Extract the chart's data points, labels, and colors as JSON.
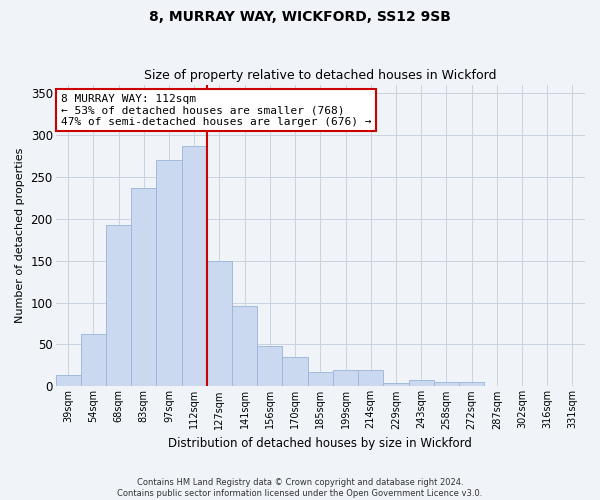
{
  "title": "8, MURRAY WAY, WICKFORD, SS12 9SB",
  "subtitle": "Size of property relative to detached houses in Wickford",
  "xlabel": "Distribution of detached houses by size in Wickford",
  "ylabel": "Number of detached properties",
  "bar_color": "#cad9ef",
  "bar_edge_color": "#9ab4d8",
  "highlight_color": "#cc0000",
  "highlight_index": 5,
  "categories": [
    "39sqm",
    "54sqm",
    "68sqm",
    "83sqm",
    "97sqm",
    "112sqm",
    "127sqm",
    "141sqm",
    "156sqm",
    "170sqm",
    "185sqm",
    "199sqm",
    "214sqm",
    "229sqm",
    "243sqm",
    "258sqm",
    "272sqm",
    "287sqm",
    "302sqm",
    "316sqm",
    "331sqm"
  ],
  "values": [
    13,
    62,
    192,
    237,
    270,
    287,
    150,
    96,
    48,
    35,
    17,
    19,
    19,
    4,
    8,
    5,
    5,
    1,
    0,
    0,
    1
  ],
  "ylim": [
    0,
    360
  ],
  "yticks": [
    0,
    50,
    100,
    150,
    200,
    250,
    300,
    350
  ],
  "annotation_line1": "8 MURRAY WAY: 112sqm",
  "annotation_line2": "← 53% of detached houses are smaller (768)",
  "annotation_line3": "47% of semi-detached houses are larger (676) →",
  "annotation_box_color": "white",
  "annotation_box_edge_color": "#cc0000",
  "footnote_line1": "Contains HM Land Registry data © Crown copyright and database right 2024.",
  "footnote_line2": "Contains public sector information licensed under the Open Government Licence v3.0.",
  "background_color": "#f0f4f8",
  "plot_bg_color": "#f0f4f8",
  "grid_color": "#c8d4e0"
}
